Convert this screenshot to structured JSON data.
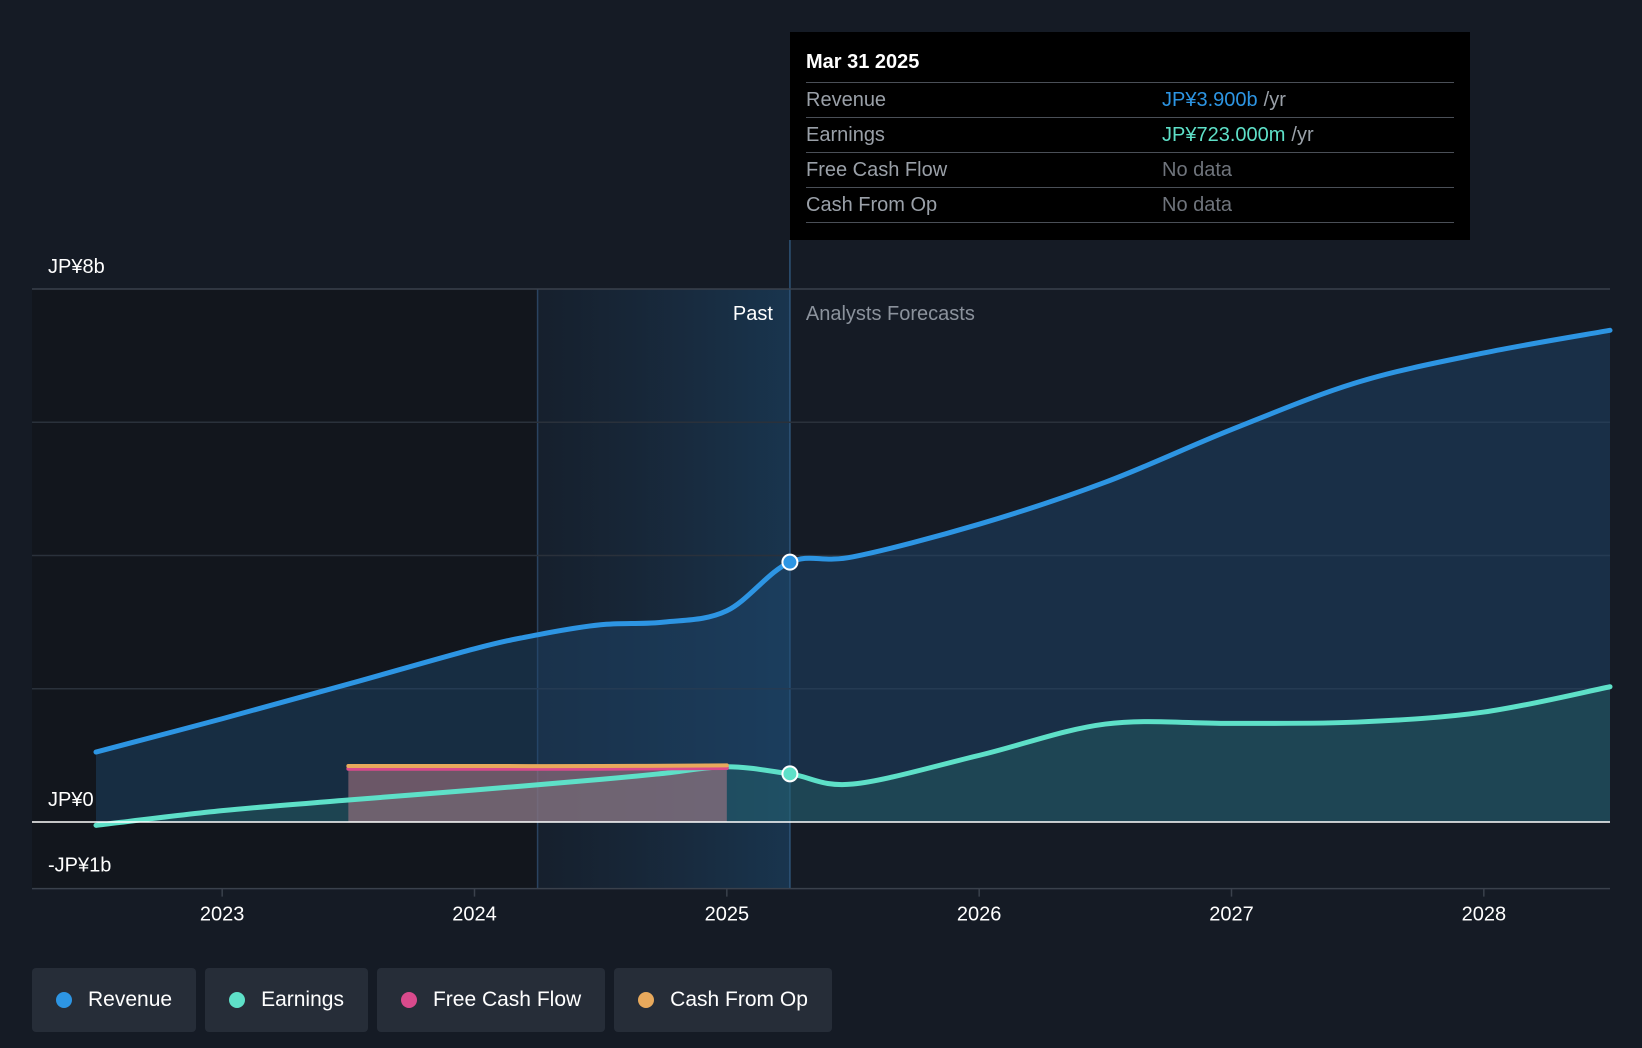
{
  "tooltip": {
    "date": "Mar 31 2025",
    "rows": [
      {
        "label": "Revenue",
        "value": "JP¥3.900b",
        "unit": "/yr",
        "color": "#2d95e3"
      },
      {
        "label": "Earnings",
        "value": "JP¥723.000m",
        "unit": "/yr",
        "color": "#5ee0c8"
      },
      {
        "label": "Free Cash Flow",
        "value": "No data",
        "unit": "",
        "color": "#6f747c"
      },
      {
        "label": "Cash From Op",
        "value": "No data",
        "unit": "",
        "color": "#6f747c"
      }
    ]
  },
  "labels": {
    "past": "Past",
    "forecast": "Analysts Forecasts"
  },
  "legend": [
    {
      "label": "Revenue",
      "color": "#2d95e3"
    },
    {
      "label": "Earnings",
      "color": "#5ee0c8"
    },
    {
      "label": "Free Cash Flow",
      "color": "#d94a8c"
    },
    {
      "label": "Cash From Op",
      "color": "#e8a95c"
    }
  ],
  "chart_data": {
    "type": "area",
    "title": "",
    "xlabel": "",
    "ylabel": "",
    "unit": "JP¥ billions",
    "ylim": [
      -1,
      8
    ],
    "y_tick_values": [
      8,
      0,
      -1
    ],
    "y_tick_labels": [
      "JP¥8b",
      "JP¥0",
      "-JP¥1b"
    ],
    "x_tick_values": [
      2023,
      2024,
      2025,
      2026,
      2027,
      2028
    ],
    "x_tick_labels": [
      "2023",
      "2024",
      "2025",
      "2026",
      "2027",
      "2028"
    ],
    "xlim": [
      2022.25,
      2028.5
    ],
    "past_start": 2024.25,
    "present": 2025.25,
    "highlight_date": "Mar 31 2025",
    "series": [
      {
        "name": "Revenue",
        "color": "#2d95e3",
        "points": [
          [
            2022.5,
            1.05
          ],
          [
            2023.0,
            1.55
          ],
          [
            2023.5,
            2.07
          ],
          [
            2024.0,
            2.6
          ],
          [
            2024.25,
            2.81
          ],
          [
            2024.5,
            2.96
          ],
          [
            2024.75,
            3.0
          ],
          [
            2025.0,
            3.17
          ],
          [
            2025.25,
            3.9
          ],
          [
            2025.5,
            3.98
          ],
          [
            2026.0,
            4.47
          ],
          [
            2026.5,
            5.1
          ],
          [
            2027.0,
            5.89
          ],
          [
            2027.5,
            6.6
          ],
          [
            2028.0,
            7.04
          ],
          [
            2028.5,
            7.38
          ]
        ]
      },
      {
        "name": "Earnings",
        "color": "#5ee0c8",
        "points": [
          [
            2022.5,
            -0.05
          ],
          [
            2023.0,
            0.17
          ],
          [
            2023.5,
            0.33
          ],
          [
            2024.0,
            0.48
          ],
          [
            2024.5,
            0.64
          ],
          [
            2024.75,
            0.73
          ],
          [
            2025.0,
            0.83
          ],
          [
            2025.25,
            0.723
          ],
          [
            2025.5,
            0.57
          ],
          [
            2026.0,
            1.0
          ],
          [
            2026.5,
            1.47
          ],
          [
            2027.0,
            1.48
          ],
          [
            2027.5,
            1.5
          ],
          [
            2028.0,
            1.65
          ],
          [
            2028.5,
            2.03
          ]
        ]
      },
      {
        "name": "Free Cash Flow",
        "color": "#d94a8c",
        "points": [
          [
            2023.5,
            0.8
          ],
          [
            2024.0,
            0.8
          ],
          [
            2024.5,
            0.8
          ],
          [
            2025.0,
            0.81
          ]
        ]
      },
      {
        "name": "Cash From Op",
        "color": "#e8a95c",
        "points": [
          [
            2023.5,
            0.84
          ],
          [
            2024.0,
            0.84
          ],
          [
            2024.5,
            0.84
          ],
          [
            2025.0,
            0.85
          ]
        ]
      }
    ],
    "highlight_points": [
      {
        "series": "Revenue",
        "x": 2025.25,
        "y": 3.9
      },
      {
        "series": "Earnings",
        "x": 2025.25,
        "y": 0.723
      }
    ]
  }
}
